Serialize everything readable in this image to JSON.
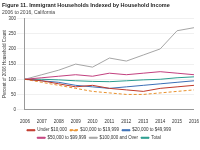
{
  "chart_data": {
    "type": "line",
    "title": "Figure 11. Immigrant Households Indexed by Household Income",
    "subtitle": "2006 to 2016, California",
    "y_label": "Percent of 2006 Household Count",
    "categories": [
      "2006",
      "2007",
      "2008",
      "2009",
      "2010",
      "2011",
      "2012",
      "2013",
      "2014",
      "2015",
      "2016"
    ],
    "series": [
      {
        "name": "Under $10,000",
        "color": "#c0392b",
        "line_style": "solid",
        "values": [
          100,
          95,
          85,
          75,
          80,
          70,
          65,
          60,
          70,
          75,
          80
        ]
      },
      {
        "name": "$10,000 to $19,999",
        "color": "#e8912d",
        "line_style": "dashed",
        "values": [
          100,
          90,
          80,
          70,
          60,
          55,
          50,
          50,
          55,
          60,
          65
        ]
      },
      {
        "name": "$20,000 to $49,999",
        "color": "#3b6fb6",
        "line_style": "solid",
        "values": [
          100,
          95,
          90,
          80,
          75,
          70,
          75,
          80,
          85,
          90,
          95
        ]
      },
      {
        "name": "$50,000 to $99,999",
        "color": "#c2417f",
        "line_style": "solid",
        "values": [
          100,
          105,
          110,
          115,
          110,
          120,
          115,
          120,
          125,
          120,
          115
        ]
      },
      {
        "name": "$100,000 and Over",
        "color": "#a6a6a6",
        "line_style": "solid",
        "values": [
          100,
          115,
          130,
          150,
          140,
          170,
          160,
          180,
          200,
          260,
          270
        ]
      },
      {
        "name": "Total",
        "color": "#2a9d8f",
        "line_style": "solid",
        "values": [
          100,
          100,
          98,
          95,
          93,
          92,
          95,
          98,
          100,
          105,
          108
        ]
      }
    ],
    "ylim": [
      0,
      300
    ],
    "yticks": [
      0,
      50,
      100,
      150,
      200,
      250,
      300
    ],
    "grid": true,
    "legend": "bottom"
  }
}
